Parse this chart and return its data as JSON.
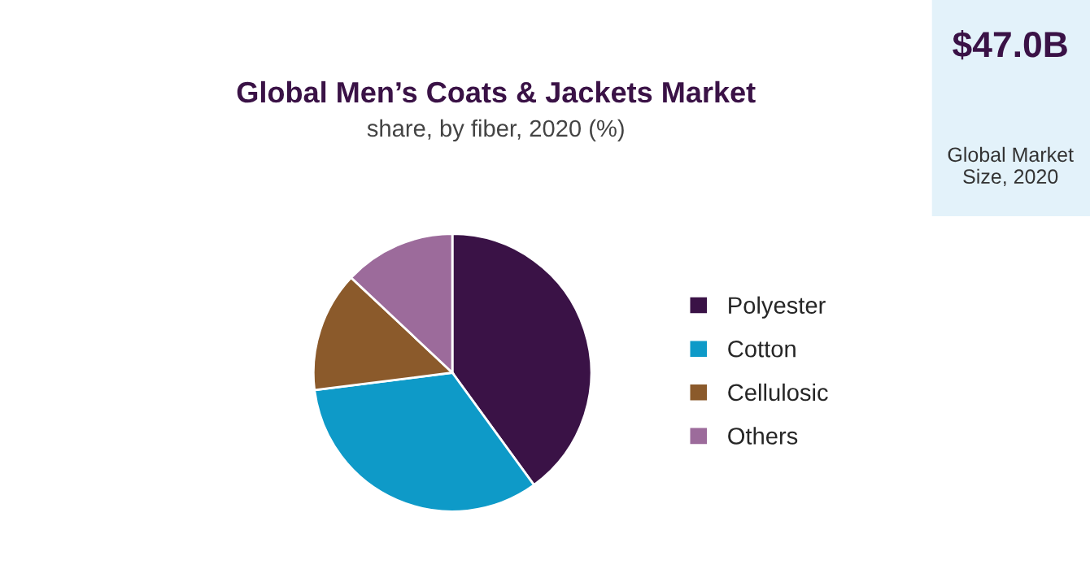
{
  "chart_data": {
    "type": "pie",
    "title": "Global Men’s Coats & Jackets Market",
    "subtitle": "share, by fiber, 2020 (%)",
    "categories": [
      "Polyester",
      "Cotton",
      "Cellulosic",
      "Others"
    ],
    "values": [
      40,
      33,
      14,
      13
    ],
    "colors": [
      "#3a1246",
      "#0e9ac8",
      "#8b5a2b",
      "#9c6b9b"
    ],
    "legend": "right",
    "annotations": [
      "$47.0B",
      "Global Market Size, 2020"
    ]
  }
}
